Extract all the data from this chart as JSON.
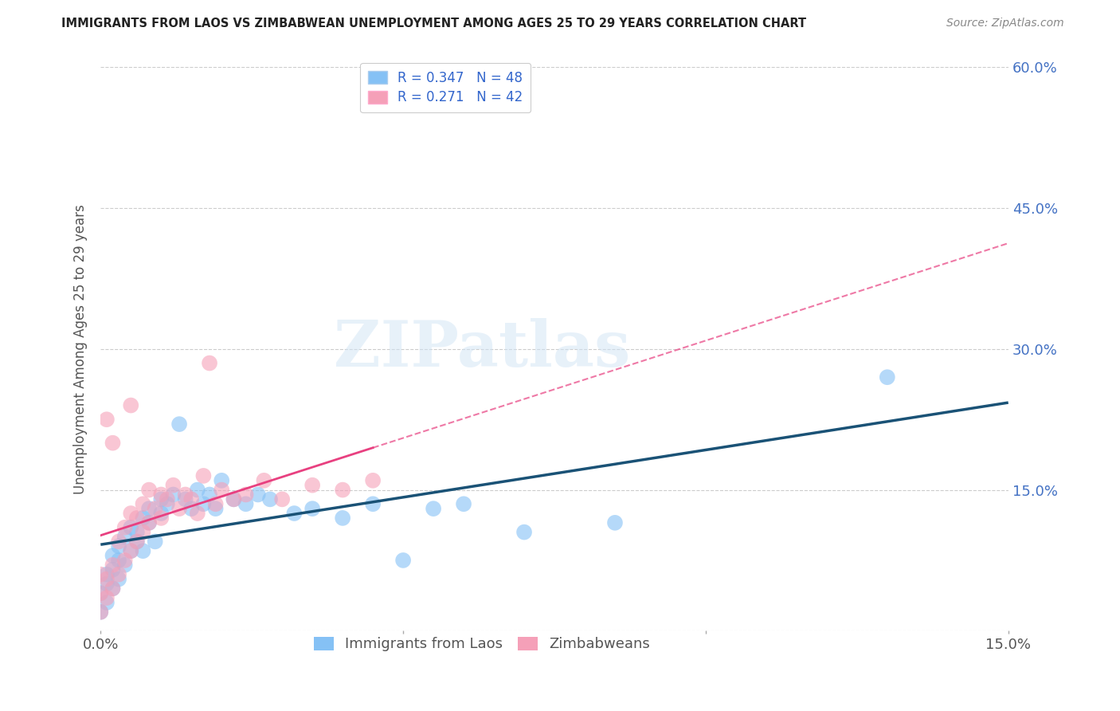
{
  "title": "IMMIGRANTS FROM LAOS VS ZIMBABWEAN UNEMPLOYMENT AMONG AGES 25 TO 29 YEARS CORRELATION CHART",
  "source": "Source: ZipAtlas.com",
  "ylabel": "Unemployment Among Ages 25 to 29 years",
  "xlim": [
    0,
    0.15
  ],
  "ylim": [
    0,
    0.6
  ],
  "laos_R": "0.347",
  "laos_N": "48",
  "zimb_R": "0.271",
  "zimb_N": "42",
  "laos_color": "#85C1F5",
  "zimb_color": "#F5A0B8",
  "laos_line_color": "#1A5276",
  "zimb_line_color": "#E84080",
  "legend_label_laos": "Immigrants from Laos",
  "legend_label_zimb": "Zimbabweans",
  "watermark_text": "ZIPatlas",
  "laos_x": [
    0.0,
    0.0,
    0.001,
    0.001,
    0.001,
    0.002,
    0.002,
    0.002,
    0.003,
    0.003,
    0.003,
    0.004,
    0.004,
    0.005,
    0.005,
    0.006,
    0.006,
    0.007,
    0.007,
    0.008,
    0.008,
    0.009,
    0.01,
    0.01,
    0.011,
    0.012,
    0.013,
    0.014,
    0.015,
    0.016,
    0.017,
    0.018,
    0.019,
    0.02,
    0.022,
    0.024,
    0.026,
    0.028,
    0.032,
    0.035,
    0.04,
    0.045,
    0.05,
    0.055,
    0.06,
    0.07,
    0.085,
    0.13
  ],
  "laos_y": [
    0.02,
    0.04,
    0.03,
    0.05,
    0.06,
    0.045,
    0.065,
    0.08,
    0.055,
    0.075,
    0.09,
    0.07,
    0.1,
    0.085,
    0.11,
    0.095,
    0.105,
    0.12,
    0.085,
    0.115,
    0.13,
    0.095,
    0.125,
    0.14,
    0.135,
    0.145,
    0.22,
    0.14,
    0.13,
    0.15,
    0.135,
    0.145,
    0.13,
    0.16,
    0.14,
    0.135,
    0.145,
    0.14,
    0.125,
    0.13,
    0.12,
    0.135,
    0.075,
    0.13,
    0.135,
    0.105,
    0.115,
    0.27
  ],
  "zimb_x": [
    0.0,
    0.0,
    0.0,
    0.001,
    0.001,
    0.001,
    0.002,
    0.002,
    0.002,
    0.003,
    0.003,
    0.004,
    0.004,
    0.005,
    0.005,
    0.005,
    0.006,
    0.006,
    0.007,
    0.007,
    0.008,
    0.008,
    0.009,
    0.01,
    0.01,
    0.011,
    0.012,
    0.013,
    0.014,
    0.015,
    0.016,
    0.017,
    0.018,
    0.019,
    0.02,
    0.022,
    0.024,
    0.027,
    0.03,
    0.035,
    0.04,
    0.045
  ],
  "zimb_y": [
    0.02,
    0.04,
    0.06,
    0.035,
    0.055,
    0.225,
    0.045,
    0.07,
    0.2,
    0.06,
    0.095,
    0.075,
    0.11,
    0.085,
    0.125,
    0.24,
    0.095,
    0.12,
    0.105,
    0.135,
    0.115,
    0.15,
    0.13,
    0.12,
    0.145,
    0.14,
    0.155,
    0.13,
    0.145,
    0.14,
    0.125,
    0.165,
    0.285,
    0.135,
    0.15,
    0.14,
    0.145,
    0.16,
    0.14,
    0.155,
    0.15,
    0.16
  ]
}
